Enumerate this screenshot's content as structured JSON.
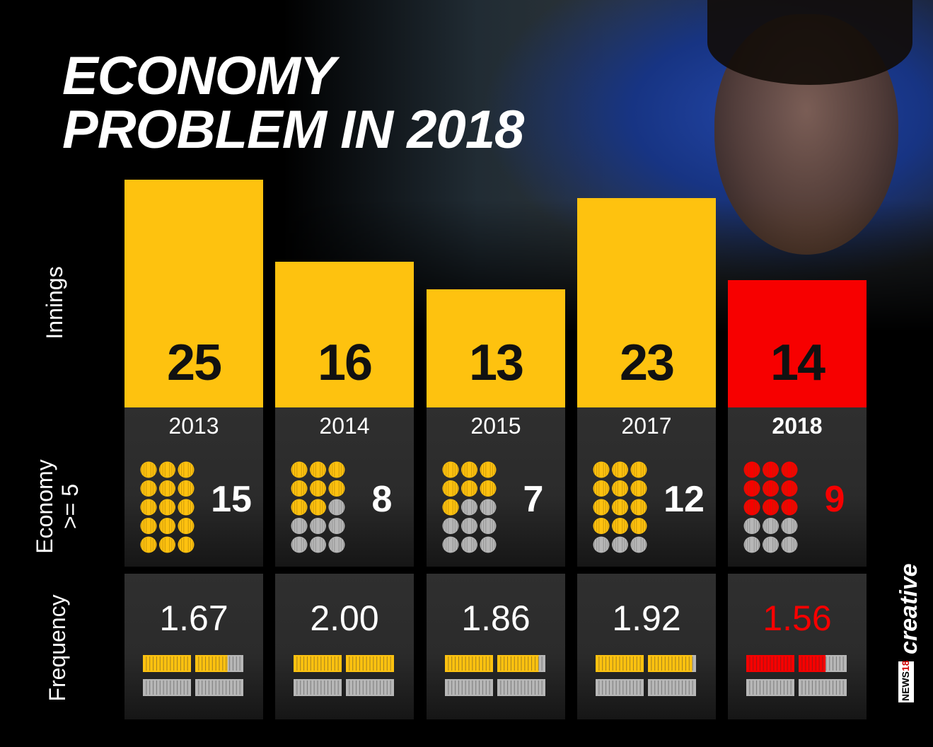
{
  "title": {
    "line1": "ECONOMY",
    "line2": "PROBLEM IN 2018"
  },
  "row_labels": {
    "innings": "Innings",
    "economy": "Economy\n>= 5",
    "frequency": "Frequency"
  },
  "colors": {
    "highlight": "#fec20f",
    "highlight_2018": "#f70000",
    "inactive_ball": "#b7b7b7",
    "panel": "#2b2b2b"
  },
  "chart_data": {
    "type": "bar",
    "categories": [
      "2013",
      "2014",
      "2015",
      "2017",
      "2018"
    ],
    "series": [
      {
        "name": "Innings",
        "values": [
          25,
          16,
          13,
          23,
          14
        ]
      },
      {
        "name": "Economy >= 5",
        "values": [
          15,
          8,
          7,
          12,
          9
        ]
      },
      {
        "name": "Frequency",
        "values": [
          "1.67",
          "2.00",
          "1.86",
          "1.92",
          "1.56"
        ]
      }
    ],
    "highlighted_category": "2018",
    "title": "ECONOMY PROBLEM IN 2018",
    "ylim": [
      0,
      25
    ]
  },
  "brand": {
    "news": "NEWS",
    "sup": "18",
    "creative": "creative"
  }
}
